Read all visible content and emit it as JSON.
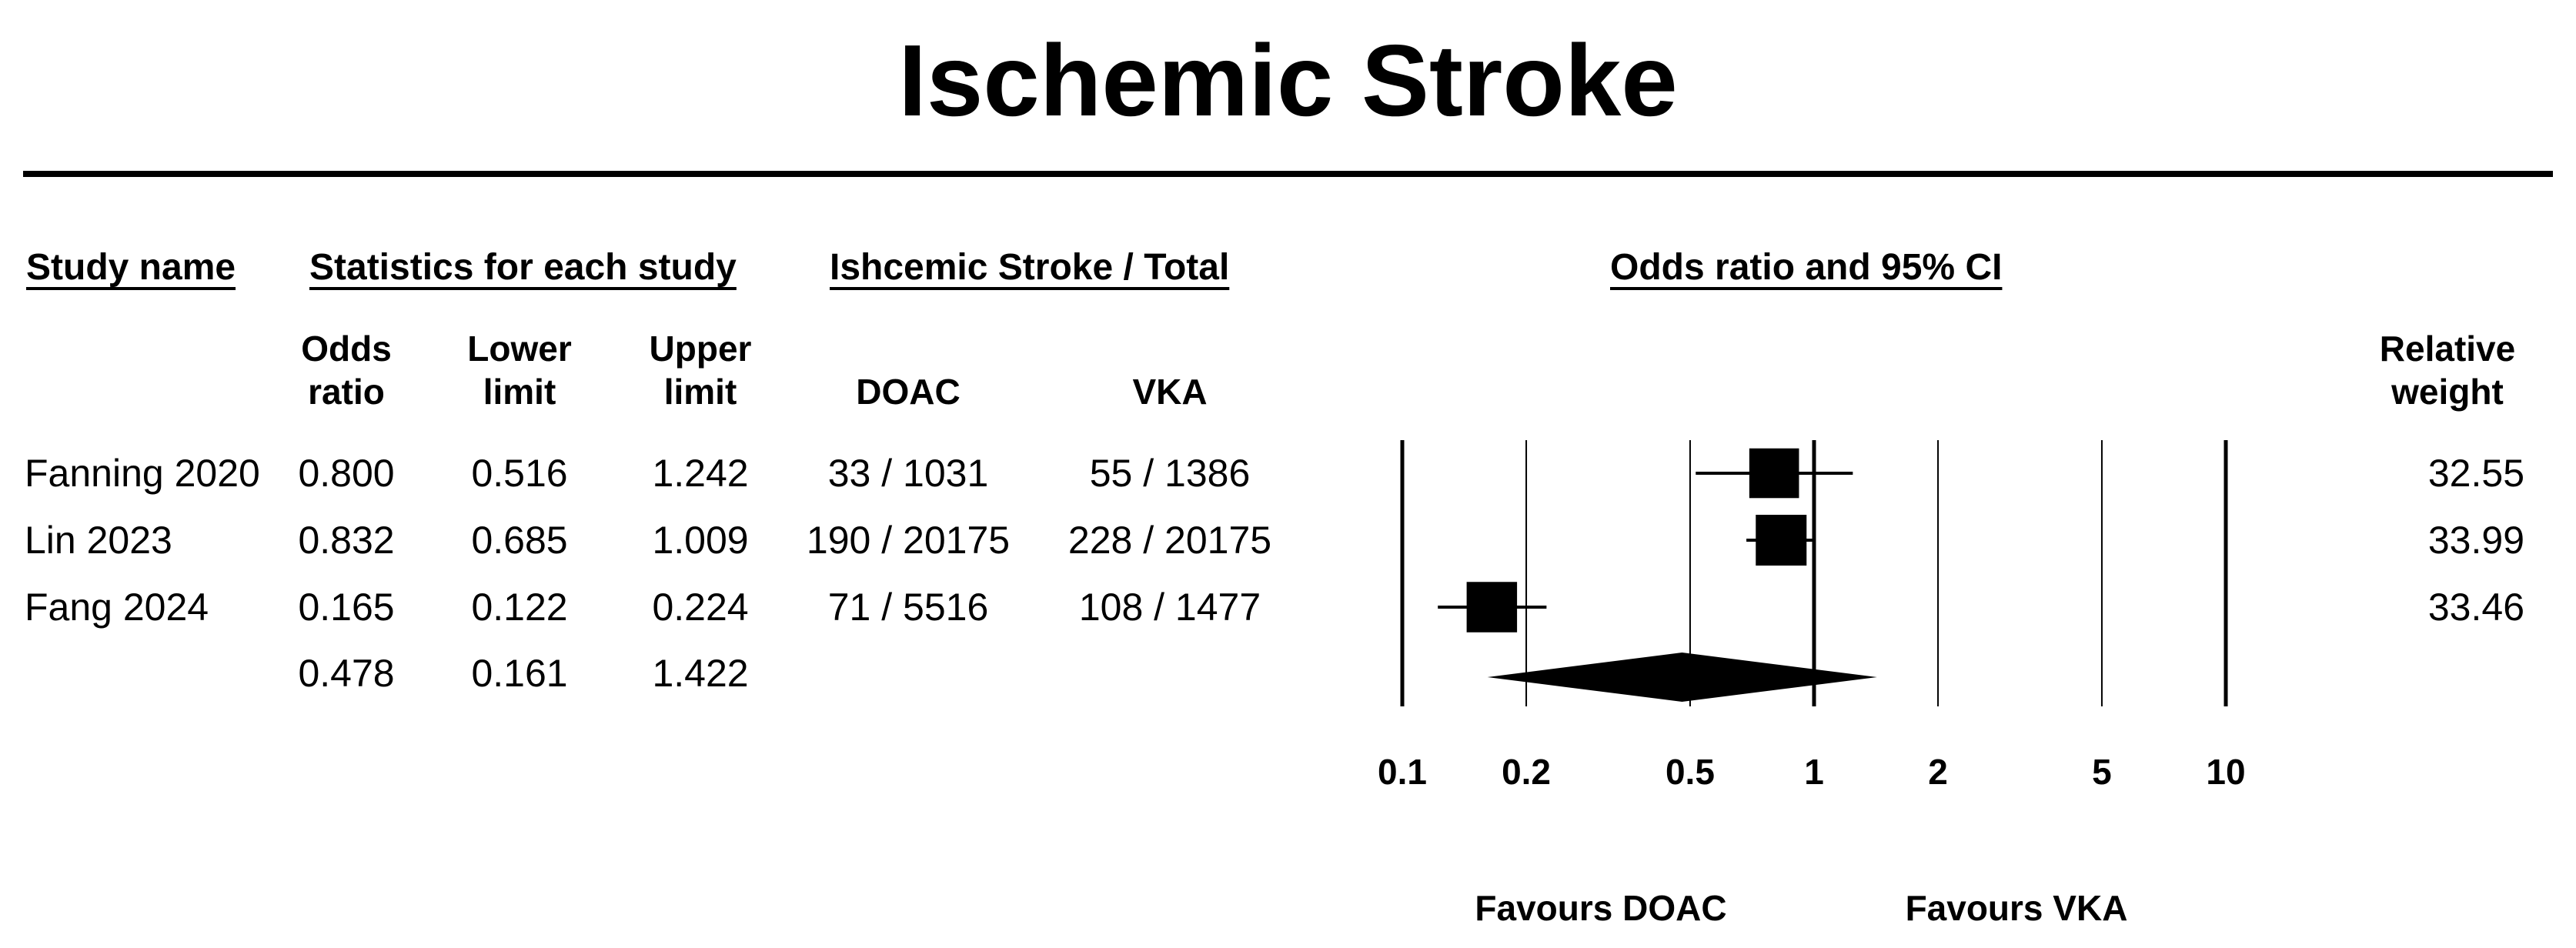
{
  "title": "Ischemic Stroke",
  "headers": {
    "study_name": "Study name",
    "statistics": "Statistics for each study",
    "events": "Ishcemic Stroke / Total",
    "plot": "Odds ratio and 95% CI"
  },
  "subheaders": {
    "odds_ratio": [
      "Odds",
      "ratio"
    ],
    "lower_limit": [
      "Lower",
      "limit"
    ],
    "upper_limit": [
      "Upper",
      "limit"
    ],
    "doac": "DOAC",
    "vka": "VKA",
    "relative_weight": [
      "Relative",
      "weight"
    ]
  },
  "rows": [
    {
      "study": "Fanning 2020",
      "or": "0.800",
      "lower": "0.516",
      "upper": "1.242",
      "doac": "33 / 1031",
      "vka": "55 / 1386",
      "weight": "32.55"
    },
    {
      "study": "Lin 2023",
      "or": "0.832",
      "lower": "0.685",
      "upper": "1.009",
      "doac": "190 / 20175",
      "vka": "228 / 20175",
      "weight": "33.99"
    },
    {
      "study": "Fang 2024",
      "or": "0.165",
      "lower": "0.122",
      "upper": "0.224",
      "doac": "71 / 5516",
      "vka": "108 / 1477",
      "weight": "33.46"
    }
  ],
  "summary": {
    "or": "0.478",
    "lower": "0.161",
    "upper": "1.422"
  },
  "favours": {
    "left": "Favours DOAC",
    "right": "Favours VKA"
  },
  "chart_data": {
    "type": "forest",
    "scale": "log",
    "xlim": [
      0.1,
      10
    ],
    "ticks": [
      "0.1",
      "0.2",
      "0.5",
      "1",
      "2",
      "5",
      "10"
    ],
    "studies": [
      {
        "name": "Fanning 2020",
        "or": 0.8,
        "lower": 0.516,
        "upper": 1.242,
        "weight": 32.55
      },
      {
        "name": "Lin 2023",
        "or": 0.832,
        "lower": 0.685,
        "upper": 1.009,
        "weight": 33.99
      },
      {
        "name": "Fang 2024",
        "or": 0.165,
        "lower": 0.122,
        "upper": 0.224,
        "weight": 33.46
      }
    ],
    "summary": {
      "or": 0.478,
      "lower": 0.161,
      "upper": 1.422
    }
  }
}
